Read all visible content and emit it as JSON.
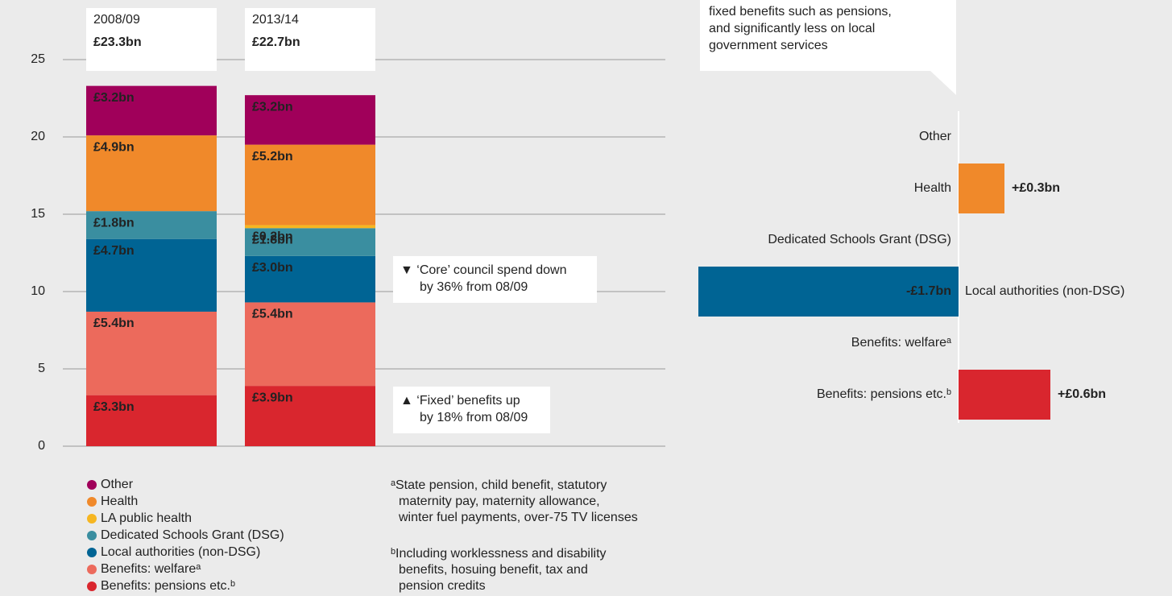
{
  "chart_data": [
    {
      "type": "stacked-bar",
      "categories": [
        "2008/09",
        "2013/14"
      ],
      "totals": {
        "values": [
          23.3,
          22.7
        ],
        "value_labels": [
          "£23.3bn",
          "£22.7bn"
        ]
      },
      "ylim": [
        0,
        25
      ],
      "yticks": [
        0,
        5,
        10,
        15,
        20,
        25
      ],
      "grid": true,
      "series": [
        {
          "name": "Benefits: pensions etc.ᵇ",
          "color": "#d9262e",
          "values": [
            3.3,
            3.9
          ],
          "value_labels": [
            "£3.3bn",
            "£3.9bn"
          ]
        },
        {
          "name": "Benefits: welfareᵃ",
          "color": "#ec6a5c",
          "values": [
            5.4,
            5.4
          ],
          "value_labels": [
            "£5.4bn",
            "£5.4bn"
          ]
        },
        {
          "name": "Local authorities (non-DSG)",
          "color": "#006494",
          "values": [
            4.7,
            3.0
          ],
          "value_labels": [
            "£4.7bn",
            "£3.0bn"
          ]
        },
        {
          "name": "Dedicated Schools Grant (DSG)",
          "color": "#3a8ea0",
          "values": [
            1.8,
            1.8
          ],
          "value_labels": [
            "£1.8bn",
            "£1.8bn"
          ]
        },
        {
          "name": "LA public health",
          "color": "#f6b621",
          "values": [
            null,
            0.2
          ],
          "value_labels": [
            null,
            "£0.2bn"
          ]
        },
        {
          "name": "Health",
          "color": "#f0892a",
          "values": [
            4.9,
            5.2
          ],
          "value_labels": [
            "£4.9bn",
            "£5.2bn"
          ]
        },
        {
          "name": "Other",
          "color": "#a0005a",
          "values": [
            3.2,
            3.2
          ],
          "value_labels": [
            "£3.2bn",
            "£3.2bn"
          ]
        }
      ],
      "annotations": [
        {
          "lines": [
            "▼ ‘Core’ council spend down",
            "by 36% from 08/09"
          ],
          "color": "#006494"
        },
        {
          "lines": [
            "▲ ‘Fixed’ benefits up",
            "by 18% from 08/09"
          ],
          "color": "#d9262e"
        }
      ],
      "footnotes": [
        {
          "lines": [
            "ᵃState pension, child benefit, statutory",
            "maternity pay, maternity allowance,",
            "winter fuel payments, over-75 TV licenses"
          ]
        },
        {
          "lines": [
            "ᵇIncluding worklessness and disability",
            "benefits, hosuing benefit, tax and",
            "pension credits"
          ]
        }
      ]
    },
    {
      "type": "diverging-bar",
      "note": [
        "fixed benefits such as pensions,",
        "and significantly less on local",
        "government services"
      ],
      "categories": [
        "Other",
        "Health",
        "Dedicated Schools Grant (DSG)",
        "Local authorities (non-DSG)",
        "Benefits: welfareᵃ",
        "Benefits: pensions etc.ᵇ"
      ],
      "colors": [
        "#a0005a",
        "#f0892a",
        "#3a8ea0",
        "#006494",
        "#ec6a5c",
        "#d9262e"
      ],
      "values": [
        0,
        0.3,
        0,
        -1.7,
        0,
        0.6
      ],
      "value_labels": [
        null,
        "+£0.3bn",
        null,
        "-£1.7bn",
        null,
        "+£0.6bn"
      ]
    }
  ]
}
